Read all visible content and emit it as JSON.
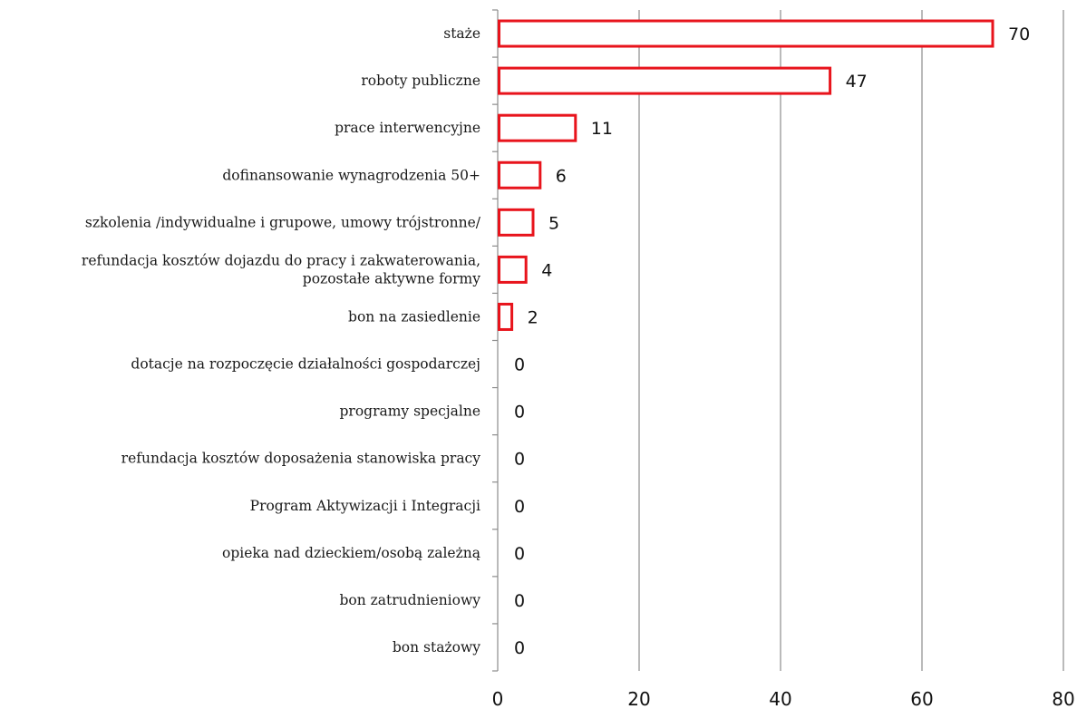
{
  "chart_data": {
    "type": "bar",
    "orientation": "horizontal",
    "title": "",
    "xlabel": "",
    "ylabel": "",
    "xlim": [
      0,
      80
    ],
    "x_ticks": [
      0,
      20,
      40,
      60,
      80
    ],
    "grid": "vertical",
    "legend": "none",
    "categories": [
      [
        "staże"
      ],
      [
        "roboty publiczne"
      ],
      [
        "prace interwencyjne"
      ],
      [
        "dofinansowanie wynagrodzenia 50+"
      ],
      [
        "szkolenia /indywidualne i grupowe, umowy trójstronne/"
      ],
      [
        "refundacja kosztów dojazdu do pracy i zakwaterowania,",
        "pozostałe aktywne formy"
      ],
      [
        "bon na  zasiedlenie"
      ],
      [
        "dotacje na rozpoczęcie działalności gospodarczej"
      ],
      [
        "programy specjalne"
      ],
      [
        "refundacja kosztów doposażenia stanowiska pracy"
      ],
      [
        "Program Aktywizacji i Integracji"
      ],
      [
        "opieka nad dzieckiem/osobą zależną"
      ],
      [
        "bon zatrudnieniowy"
      ],
      [
        "bon stażowy"
      ]
    ],
    "values": [
      70,
      47,
      11,
      6,
      5,
      4,
      2,
      0,
      0,
      0,
      0,
      0,
      0,
      0
    ],
    "colors": {
      "bar_stroke": "#e8141c",
      "bar_fill": "#ffffff",
      "grid": "#8c8c8c",
      "axis": "#8c8c8c",
      "text": "#111111"
    }
  }
}
